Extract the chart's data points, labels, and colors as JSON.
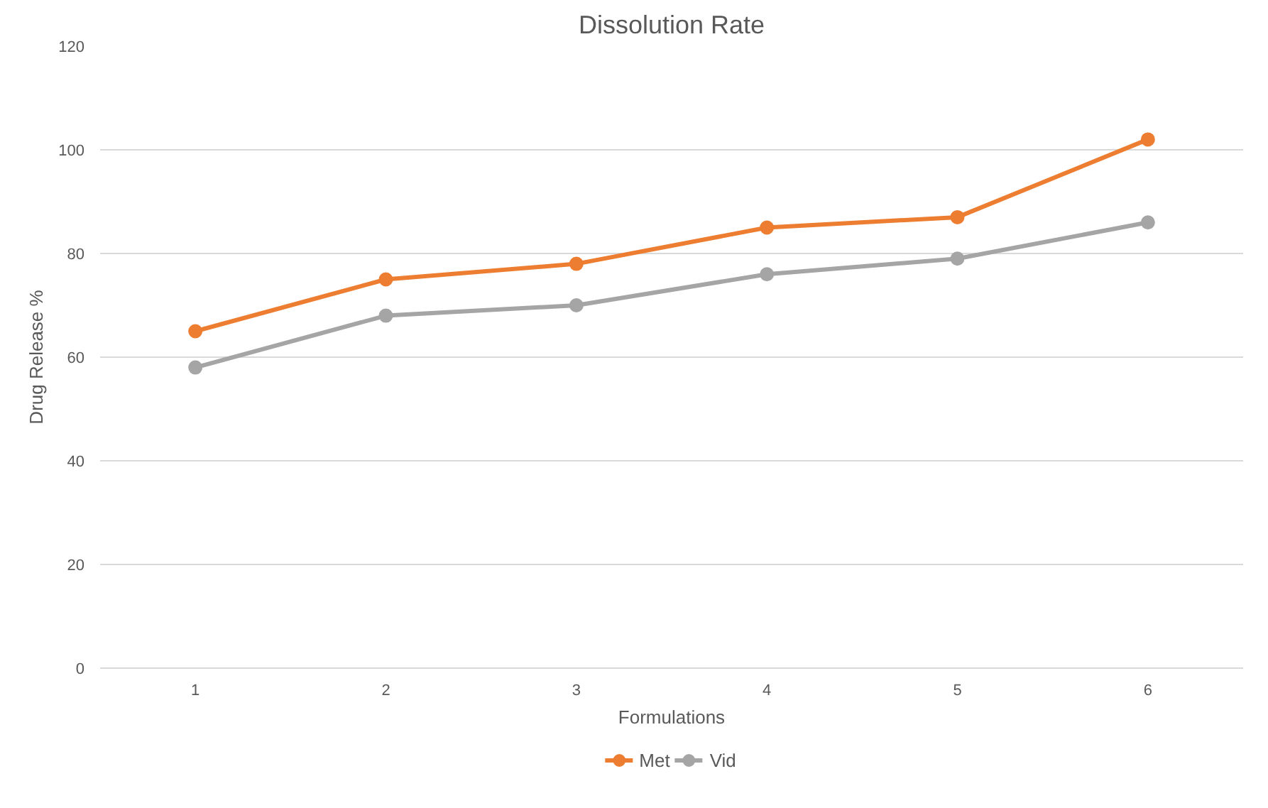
{
  "chart_data": {
    "type": "line",
    "title": "Dissolution Rate",
    "xlabel": "Formulations",
    "ylabel": "Drug Release %",
    "categories": [
      "1",
      "2",
      "3",
      "4",
      "5",
      "6"
    ],
    "series": [
      {
        "name": "Met",
        "color": "#ed7d31",
        "values": [
          65,
          75,
          78,
          85,
          87,
          102
        ]
      },
      {
        "name": "Vid",
        "color": "#a5a5a5",
        "values": [
          58,
          68,
          70,
          76,
          79,
          86
        ]
      }
    ],
    "ylim": [
      0,
      120
    ],
    "yticks": [
      0,
      20,
      40,
      60,
      80,
      100,
      120
    ],
    "grid": "y",
    "legend": "bottom",
    "marker": "circle",
    "line_style": "solid"
  }
}
